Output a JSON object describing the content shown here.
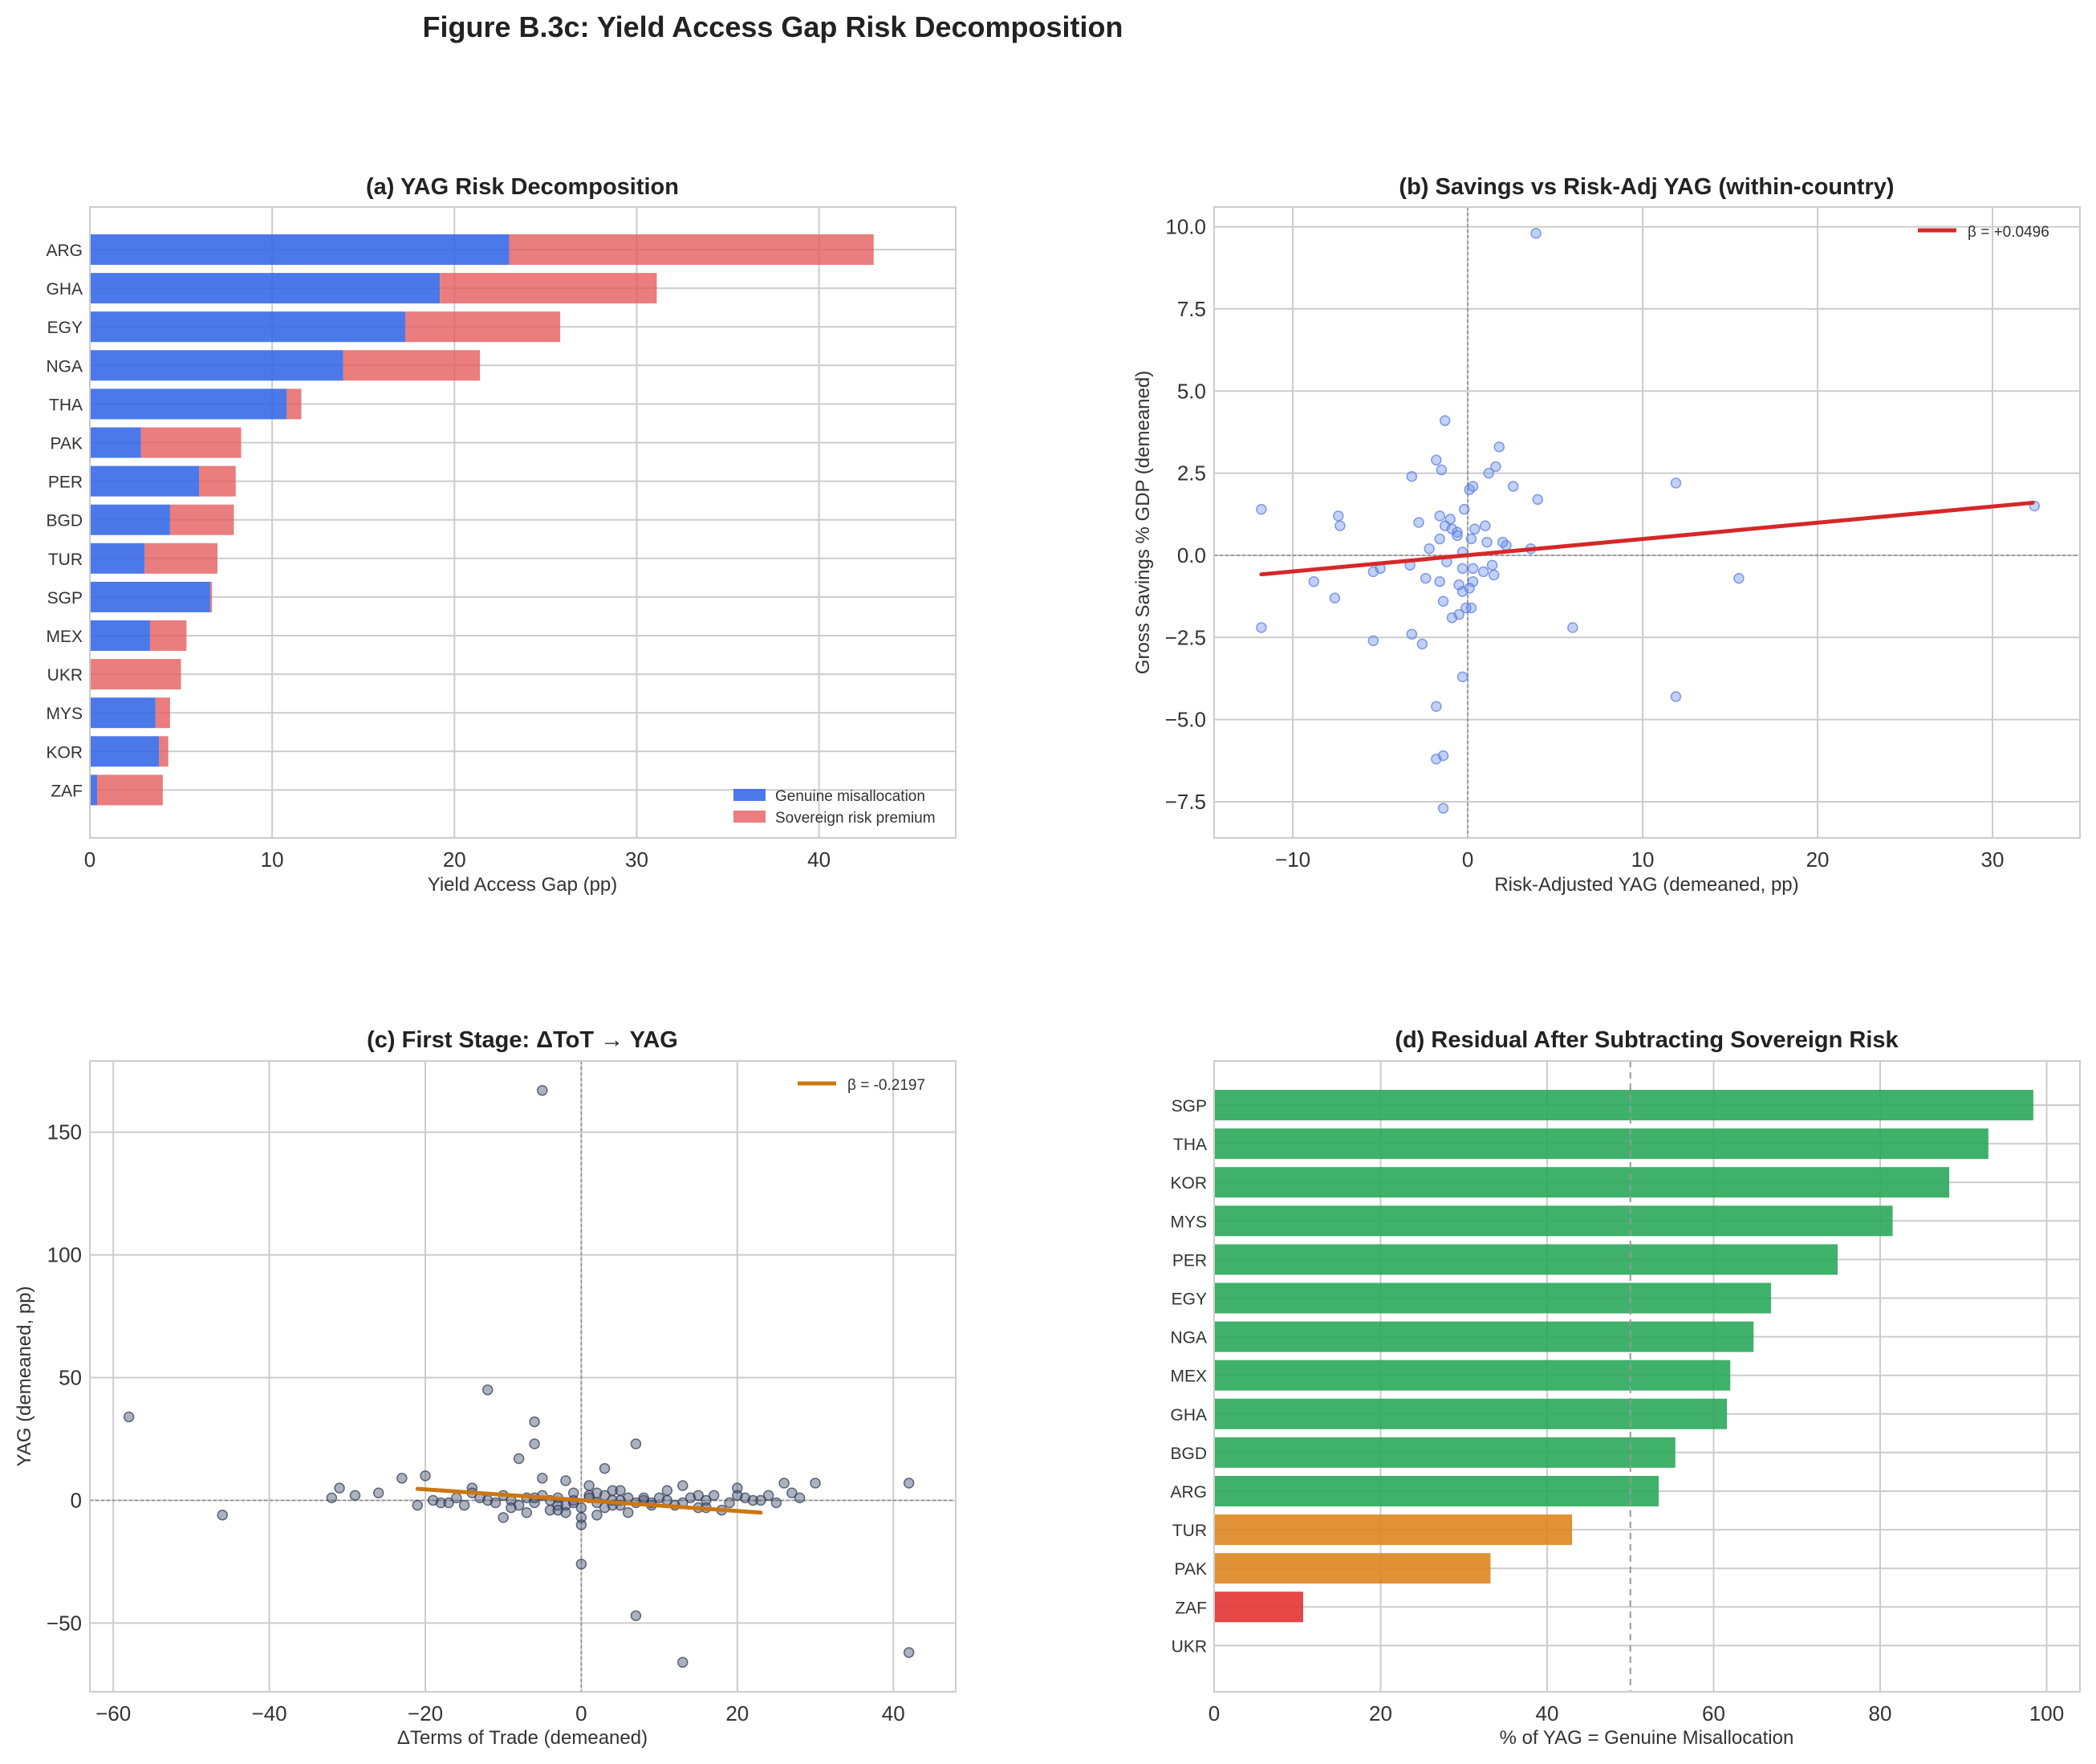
{
  "figure": {
    "title": "Figure B.3c: Yield Access Gap Risk Decomposition"
  },
  "colors": {
    "blue": "#3366e6",
    "red": "#e55c5c",
    "green": "#2aa85a",
    "orange": "#de8520",
    "crimson": "#e33333",
    "trend_red": "#d62728",
    "trend_orange": "#cc7711",
    "dots_blue": "#7799ee",
    "dots_navy": "#4a5570"
  },
  "chart_data": [
    {
      "type": "bar",
      "orientation": "horizontal",
      "stacked": true,
      "title": "(a) YAG Risk Decomposition",
      "xlabel": "Yield Access Gap (pp)",
      "ylabel": "",
      "xlim": [
        0,
        47.5
      ],
      "xticks": [
        0,
        10,
        20,
        30,
        40
      ],
      "categories": [
        "ARG",
        "GHA",
        "EGY",
        "NGA",
        "THA",
        "PAK",
        "PER",
        "BGD",
        "TUR",
        "SGP",
        "MEX",
        "UKR",
        "MYS",
        "KOR",
        "ZAF"
      ],
      "series": [
        {
          "name": "Genuine misallocation",
          "values": [
            23.0,
            19.2,
            17.3,
            13.9,
            10.8,
            2.8,
            6.0,
            4.4,
            3.0,
            6.6,
            3.3,
            0.0,
            3.6,
            3.8,
            0.4
          ]
        },
        {
          "name": "Sovereign risk premium",
          "values": [
            20.0,
            11.9,
            8.5,
            7.5,
            0.8,
            5.5,
            2.0,
            3.5,
            4.0,
            0.1,
            2.0,
            5.0,
            0.8,
            0.5,
            3.6
          ]
        }
      ],
      "legend": [
        "Genuine misallocation",
        "Sovereign risk premium"
      ],
      "legend_position": "lower-right"
    },
    {
      "type": "scatter",
      "title": "(b) Savings vs Risk-Adj YAG (within-country)",
      "xlabel": "Risk-Adjusted YAG (demeaned, pp)",
      "ylabel": "Gross Savings % GDP (demeaned)",
      "xlim": [
        -14.5,
        35
      ],
      "ylim": [
        -8.6,
        10.6
      ],
      "xticks": [
        -10,
        0,
        10,
        20,
        30
      ],
      "yticks": [
        -7.5,
        -5.0,
        -2.5,
        0.0,
        2.5,
        5.0,
        7.5,
        10.0
      ],
      "tick_labels_x": [
        "−10",
        "0",
        "10",
        "20",
        "30"
      ],
      "tick_labels_y": [
        "−7.5",
        "−5.0",
        "−2.5",
        "0.0",
        "2.5",
        "5.0",
        "7.5",
        "10.0"
      ],
      "fit": {
        "label": "β = +0.0496",
        "x": [
          -11.8,
          32.3
        ],
        "y": [
          -0.58,
          1.6
        ]
      },
      "x": [
        3.9,
        -1.3,
        -1.8,
        -3.2,
        -1.5,
        1.2,
        1.6,
        2.6,
        4.0,
        0.1,
        0.3,
        -0.2,
        -1.0,
        -1.6,
        -1.3,
        -0.9,
        0.2,
        -2.8,
        -1.6,
        -0.6,
        1.1,
        -2.2,
        -0.3,
        -3.3,
        -0.3,
        0.9,
        1.4,
        2.2,
        -1.2,
        0.3,
        -2.4,
        3.6,
        -0.3,
        -5.0,
        -5.4,
        -1.6,
        -8.8,
        -11.8,
        -7.4,
        -7.3,
        -0.5,
        0.2,
        -0.5,
        -1.4,
        1.0,
        0.3,
        2.0,
        1.5,
        0.1,
        -0.1,
        -7.6,
        -0.9,
        0.4,
        1.8,
        -0.3,
        -1.8,
        -0.6,
        -3.2,
        -2.6,
        6.0,
        -11.8,
        -5.4,
        11.9,
        -1.8,
        -1.4,
        -1.4,
        15.5,
        11.9,
        32.4
      ],
      "y": [
        9.8,
        4.1,
        2.9,
        2.4,
        2.6,
        2.5,
        2.7,
        2.1,
        1.7,
        2.0,
        2.1,
        1.4,
        1.1,
        1.2,
        0.9,
        0.8,
        0.5,
        1.0,
        0.5,
        0.7,
        0.4,
        0.2,
        0.1,
        -0.3,
        -0.4,
        -0.5,
        -0.3,
        0.3,
        -0.2,
        -0.8,
        -0.7,
        0.2,
        -1.1,
        -0.4,
        -0.5,
        -0.8,
        -0.8,
        1.4,
        1.2,
        0.9,
        -0.9,
        -1.6,
        -1.8,
        -1.4,
        0.9,
        -0.4,
        0.4,
        -0.6,
        -1.0,
        -1.6,
        -1.3,
        -1.9,
        0.8,
        3.3,
        -3.7,
        -4.6,
        0.6,
        -2.4,
        -2.7,
        -2.2,
        -2.2,
        -2.6,
        -4.3,
        -6.2,
        -6.1,
        -7.7,
        -0.7,
        2.2,
        1.5
      ]
    },
    {
      "type": "scatter",
      "title": "(c) First Stage: ΔToT → YAG",
      "xlabel": "ΔTerms of Trade (demeaned)",
      "ylabel": "YAG (demeaned, pp)",
      "xlim": [
        -63,
        48
      ],
      "ylim": [
        -78,
        179
      ],
      "xticks": [
        -60,
        -40,
        -20,
        0,
        20,
        40
      ],
      "yticks": [
        -50,
        0,
        50,
        100,
        150
      ],
      "tick_labels_x": [
        "−60",
        "−40",
        "−20",
        "0",
        "20",
        "40"
      ],
      "tick_labels_y": [
        "−50",
        "0",
        "50",
        "100",
        "150"
      ],
      "fit": {
        "label": "β = -0.2197",
        "x": [
          -21,
          23
        ],
        "y": [
          4.7,
          -5.0
        ]
      },
      "x": [
        -5,
        -58,
        -46,
        -12,
        -6,
        -6,
        -8,
        7,
        -5,
        -2,
        3,
        1,
        -32,
        -31,
        -29,
        -26,
        -23,
        -21,
        -20,
        -19,
        -18,
        -17,
        -16,
        -15,
        -14,
        -13,
        -12,
        -11,
        -10,
        -9,
        -8,
        -7,
        -6,
        -5,
        -4,
        -3,
        -2,
        -1,
        0,
        1,
        2,
        3,
        4,
        5,
        6,
        7,
        8,
        9,
        10,
        11,
        12,
        13,
        14,
        15,
        16,
        17,
        18,
        20,
        21,
        22,
        24,
        25,
        26,
        27,
        28,
        30,
        42,
        -10,
        -7,
        -3,
        -1,
        2,
        4,
        6,
        9,
        13,
        16,
        20,
        23,
        0,
        0,
        7,
        13,
        42,
        -4,
        -1,
        1,
        3,
        5,
        -2,
        0,
        2,
        -6,
        -3,
        4,
        8,
        -9,
        11,
        15,
        -14,
        19,
        5
      ],
      "y": [
        167,
        34,
        -6,
        45,
        32,
        23,
        17,
        23,
        9,
        8,
        13,
        6,
        1,
        5,
        2,
        3,
        9,
        -2,
        10,
        0,
        -1,
        -1,
        1,
        -2,
        3,
        1,
        0,
        -1,
        2,
        0,
        -2,
        1,
        -1,
        2,
        0,
        1,
        -2,
        0,
        -3,
        1,
        -1,
        2,
        0,
        -2,
        1,
        -1,
        0,
        -2,
        1,
        0,
        -2,
        -1,
        1,
        -3,
        0,
        2,
        -4,
        5,
        1,
        0,
        2,
        -1,
        7,
        3,
        1,
        7,
        7,
        -7,
        -5,
        -2,
        3,
        -6,
        4,
        -5,
        -1,
        6,
        -3,
        2,
        0,
        -10,
        -26,
        -47,
        -66,
        -62,
        -4,
        -1,
        2,
        -3,
        4,
        -5,
        -7,
        3,
        1,
        -4,
        -2,
        1,
        -3,
        4,
        2,
        5,
        -1,
        0
      ]
    },
    {
      "type": "bar",
      "orientation": "horizontal",
      "title": "(d) Residual After Subtracting Sovereign Risk",
      "xlabel": "% of YAG = Genuine Misallocation",
      "ylabel": "",
      "xlim": [
        0,
        104
      ],
      "xticks": [
        0,
        20,
        40,
        60,
        80,
        100
      ],
      "reference_line_x": 50,
      "categories": [
        "SGP",
        "THA",
        "KOR",
        "MYS",
        "PER",
        "EGY",
        "NGA",
        "MEX",
        "GHA",
        "BGD",
        "ARG",
        "TUR",
        "PAK",
        "ZAF",
        "UKR"
      ],
      "values": [
        98.4,
        93.0,
        88.3,
        81.5,
        74.9,
        66.9,
        64.8,
        62.0,
        61.6,
        55.4,
        53.4,
        43.0,
        33.2,
        10.7,
        0.0
      ],
      "bar_colors": [
        "green",
        "green",
        "green",
        "green",
        "green",
        "green",
        "green",
        "green",
        "green",
        "green",
        "green",
        "orange",
        "orange",
        "crimson",
        "green"
      ]
    }
  ]
}
